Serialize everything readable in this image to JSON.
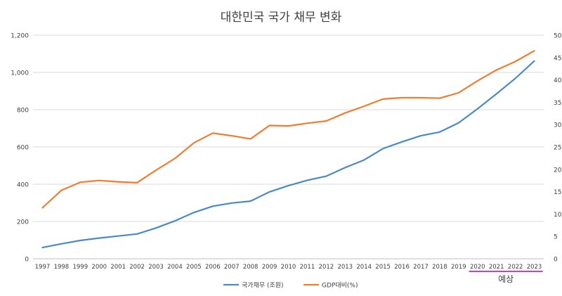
{
  "chart_data": {
    "type": "line",
    "title": "대한민국 국가 채무 변화",
    "categories": [
      "1997",
      "1998",
      "1999",
      "2000",
      "2001",
      "2002",
      "2003",
      "2004",
      "2005",
      "2006",
      "2007",
      "2008",
      "2009",
      "2010",
      "2011",
      "2012",
      "2013",
      "2014",
      "2015",
      "2016",
      "2017",
      "2018",
      "2019",
      "2020",
      "2021",
      "2022",
      "2023"
    ],
    "y_left": {
      "ylim": [
        0,
        1200
      ],
      "ticks": [
        "0",
        "200",
        "400",
        "600",
        "800",
        "1,000",
        "1,200"
      ]
    },
    "y_right": {
      "ylim": [
        0,
        50
      ],
      "ticks": [
        "0",
        "5",
        "10",
        "15",
        "20",
        "25",
        "30",
        "35",
        "40",
        "45",
        "50"
      ]
    },
    "grid": true,
    "legend_position": "bottom",
    "series": [
      {
        "name": "국가채무 (조원)",
        "axis": "left",
        "color": "#4a8ac4",
        "values": [
          60,
          80,
          98,
          111,
          122,
          133,
          165,
          203,
          248,
          282,
          299,
          309,
          359,
          392,
          421,
          443,
          489,
          530,
          591,
          627,
          660,
          680,
          729,
          805,
          885,
          968,
          1061
        ]
      },
      {
        "name": "GDP대비(%)",
        "axis": "right",
        "color": "#ed7d31",
        "values": [
          11.4,
          15.3,
          17.1,
          17.5,
          17.2,
          17.0,
          19.8,
          22.4,
          25.9,
          28.1,
          27.5,
          26.8,
          29.8,
          29.7,
          30.3,
          30.8,
          32.6,
          34.1,
          35.7,
          36.0,
          36.0,
          35.9,
          37.1,
          39.8,
          42.2,
          44.1,
          46.5
        ]
      }
    ],
    "annotation": {
      "text": "예상",
      "color": "#cc3ecc",
      "from": "2020",
      "to": "2023"
    }
  }
}
